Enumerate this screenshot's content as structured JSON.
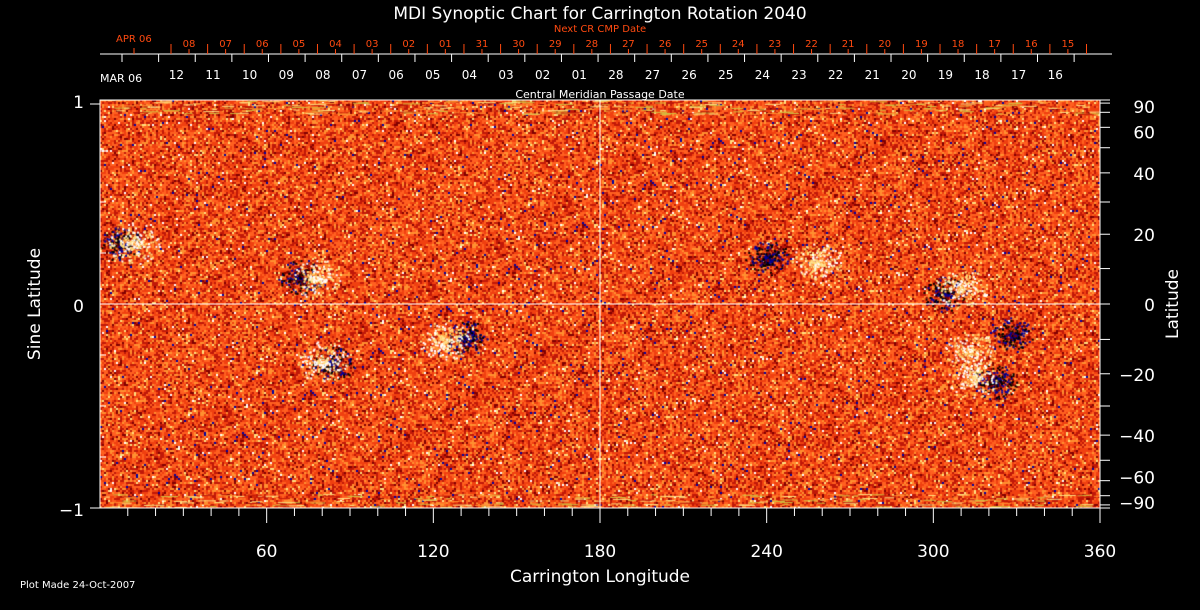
{
  "chart_data": {
    "type": "heatmap",
    "title": "MDI Synoptic Chart for Carrington Rotation 2040",
    "xlabel": "Carrington Longitude",
    "ylabel": "Sine Latitude",
    "y2label": "Latitude",
    "xlim": [
      0,
      360
    ],
    "ylim": [
      -1,
      1
    ],
    "x_ticks": [
      60,
      120,
      180,
      240,
      300,
      360
    ],
    "y_ticks": [
      -1,
      0,
      1
    ],
    "y2_ticks": [
      90,
      60,
      40,
      20,
      0,
      -20,
      -40,
      -60,
      -90
    ],
    "grid_lines": {
      "longitude": [
        180
      ],
      "sine_latitude": [
        0
      ]
    },
    "top_axis_white": {
      "label": "Central Meridian Passage Date",
      "month_label": "MAR 06",
      "days": [
        "12",
        "11",
        "10",
        "09",
        "08",
        "07",
        "06",
        "05",
        "04",
        "03",
        "02",
        "01",
        "28",
        "27",
        "26",
        "25",
        "24",
        "23",
        "22",
        "21",
        "20",
        "19",
        "18",
        "17",
        "16"
      ]
    },
    "top_axis_red": {
      "label": "Next CR CMP Date",
      "month_label": "APR 06",
      "days": [
        "08",
        "07",
        "06",
        "05",
        "04",
        "03",
        "02",
        "01",
        "31",
        "30",
        "29",
        "28",
        "27",
        "26",
        "25",
        "24",
        "23",
        "22",
        "21",
        "20",
        "19",
        "18",
        "17",
        "16",
        "15"
      ]
    },
    "colormap": [
      "#000000",
      "#0000a0",
      "#800000",
      "#c01808",
      "#f04010",
      "#ff6020",
      "#ff9030",
      "#ffe080",
      "#ffffff"
    ],
    "active_regions": [
      {
        "lon": 7,
        "sinlat": 0.3,
        "polarity": "negative"
      },
      {
        "lon": 12,
        "sinlat": 0.3,
        "polarity": "positive"
      },
      {
        "lon": 72,
        "sinlat": 0.13,
        "polarity": "negative"
      },
      {
        "lon": 77,
        "sinlat": 0.13,
        "polarity": "positive"
      },
      {
        "lon": 132,
        "sinlat": -0.16,
        "polarity": "negative"
      },
      {
        "lon": 124,
        "sinlat": -0.18,
        "polarity": "positive"
      },
      {
        "lon": 84,
        "sinlat": -0.29,
        "polarity": "negative"
      },
      {
        "lon": 80,
        "sinlat": -0.28,
        "polarity": "positive"
      },
      {
        "lon": 240,
        "sinlat": 0.23,
        "polarity": "negative"
      },
      {
        "lon": 258,
        "sinlat": 0.2,
        "polarity": "positive"
      },
      {
        "lon": 304,
        "sinlat": 0.05,
        "polarity": "negative"
      },
      {
        "lon": 310,
        "sinlat": 0.08,
        "polarity": "positive"
      },
      {
        "lon": 322,
        "sinlat": -0.38,
        "polarity": "negative"
      },
      {
        "lon": 314,
        "sinlat": -0.36,
        "polarity": "positive"
      },
      {
        "lon": 329,
        "sinlat": -0.15,
        "polarity": "negative"
      },
      {
        "lon": 313,
        "sinlat": -0.23,
        "polarity": "positive"
      }
    ]
  },
  "footer": {
    "plot_made": "Plot Made 24-Oct-2007"
  }
}
